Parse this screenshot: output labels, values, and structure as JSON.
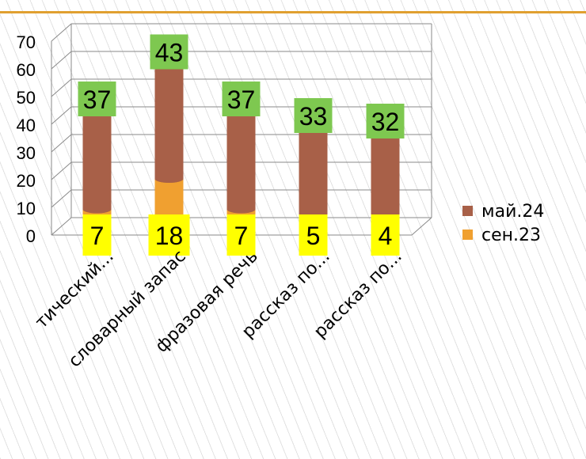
{
  "chart_data": {
    "type": "bar",
    "stacked": true,
    "style": "3d-cylinder",
    "categories": [
      "грамматический...",
      "словарный запас",
      "фразовая речь",
      "рассказ по...",
      "рассказ по..."
    ],
    "tick_labels_visible": [
      "тический...",
      "словарный запас",
      "фразовая речь",
      "рассказ по...",
      "рассказ по..."
    ],
    "series": [
      {
        "name": "сен.23",
        "values": [
          7,
          18,
          7,
          5,
          4
        ],
        "color": "#f0a030"
      },
      {
        "name": "май.24",
        "values": [
          37,
          43,
          37,
          33,
          32
        ],
        "color": "#a86048"
      }
    ],
    "yticks": [
      "0",
      "10",
      "20",
      "30",
      "40",
      "50",
      "60",
      "70"
    ],
    "ylim": [
      0,
      70
    ],
    "grid": true,
    "legend": "right",
    "legend_entries": [
      "май.24",
      "сен.23"
    ],
    "label_colors": {
      "top": "#7ec850",
      "bottom": "#ffff00"
    },
    "accent_line": "#e0a030"
  }
}
